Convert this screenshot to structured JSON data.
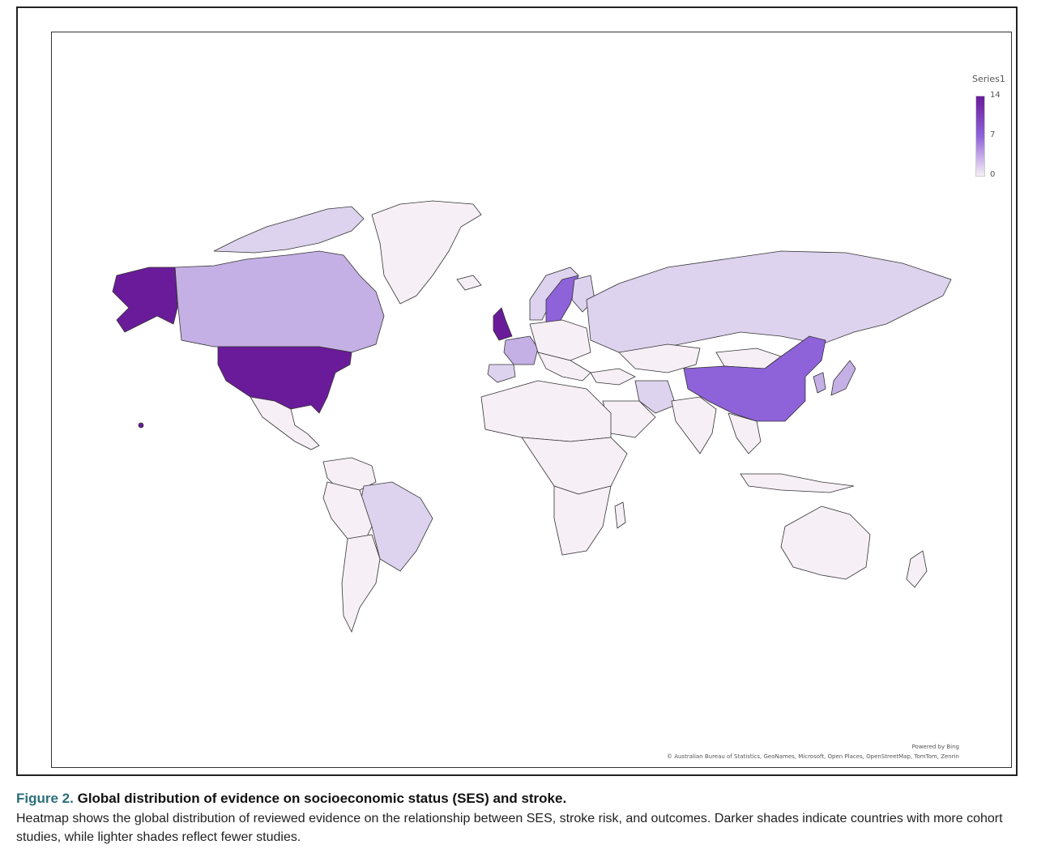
{
  "legend": {
    "title": "Series1",
    "max_label": "14",
    "mid_label": "7",
    "min_label": "0"
  },
  "attribution": {
    "powered_by": "Powered by Bing",
    "sources": "© Australian Bureau of Statistics, GeoNames, Microsoft, Open Places, OpenStreetMap, TomTom, Zenrin"
  },
  "caption": {
    "label": "Figure 2.",
    "title": "Global distribution of evidence on socioeconomic status (SES) and stroke.",
    "body": "Heatmap shows the global distribution of reviewed evidence on the relationship between SES, stroke risk, and outcomes. Darker shades indicate countries with more cohort studies, while lighter shades reflect fewer studies."
  },
  "colors": {
    "high": "#6a1b9a",
    "mid": "#8e62d8",
    "low_mid": "#c4b0e4",
    "low": "#ddd3ee",
    "zero": "#f7eff6",
    "border": "#333333"
  },
  "chart_data": {
    "type": "heatmap",
    "series": "Series1",
    "scale": [
      0,
      14
    ],
    "ticks": [
      14,
      7,
      0
    ]
  }
}
